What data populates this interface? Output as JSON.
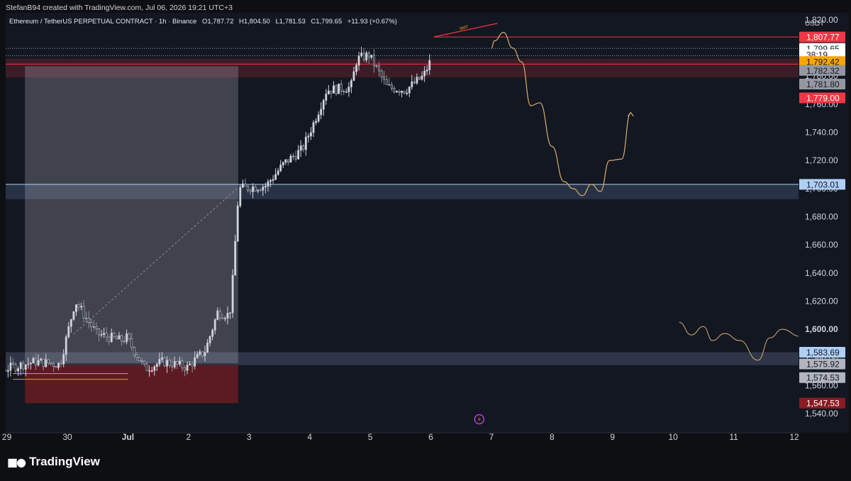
{
  "header": {
    "created_by": "StefanB94 created with TradingView.com, Jul 06, 2026 19:21 UTC+3"
  },
  "legend": {
    "symbol": "Ethereum / TetherUS PERPETUAL CONTRACT · 1h · Binance",
    "open": "O1,787.72",
    "high": "H1,804.50",
    "low": "L1,781.53",
    "close": "C1,799.65",
    "change": "+11.93 (+0.67%)"
  },
  "currency": "USDT",
  "footer": {
    "brand": "TradingView",
    "logo_icon": "tradingview-logo-icon"
  },
  "colors": {
    "background": "#131722",
    "candle_body": "#d1d4dc",
    "red_line": "#f23645",
    "blue_line": "#b0cff5",
    "projection": "#d9ad6a",
    "demand_zone": "#5c1b22"
  },
  "chart_data": {
    "type": "candlestick",
    "interval": "1h",
    "yaxis": {
      "ylim": [
        1530,
        1825
      ],
      "ticks": [
        "1,820.00",
        "1,800.00",
        "1,780.00",
        "1,760.00",
        "1,740.00",
        "1,720.00",
        "1,700.00",
        "1,680.00",
        "1,660.00",
        "1,640.00",
        "1,620.00",
        "1,600.00",
        "1,580.00",
        "1,560.00",
        "1,540.00"
      ],
      "tick_values": [
        1820,
        1800,
        1780,
        1760,
        1740,
        1720,
        1700,
        1680,
        1660,
        1640,
        1620,
        1600,
        1580,
        1560,
        1540
      ]
    },
    "xaxis": {
      "labels": [
        "29",
        "30",
        "Jul",
        "2",
        "3",
        "4",
        "5",
        "6",
        "7",
        "8",
        "9",
        "10",
        "11",
        "12"
      ],
      "day_values": [
        29,
        30,
        31,
        32,
        33,
        34,
        35,
        36,
        37,
        38,
        39,
        40,
        41,
        42
      ]
    },
    "price_badges": [
      {
        "label": "1,807.77",
        "value": 1807.77,
        "bg": "#f23645",
        "fg": "#ffffff"
      },
      {
        "label": "1,799.65",
        "value": 1799.65,
        "bg": "#ffffff",
        "fg": "#131722"
      },
      {
        "label": "38:19",
        "value": 1795.2,
        "bg": "#ffffff",
        "fg": "#131722"
      },
      {
        "label": "1,792.42",
        "value": 1790.3,
        "bg": "#f7a600",
        "fg": "#131722"
      },
      {
        "label": "1,782.32",
        "value": 1784.0,
        "bg": "#9598a1",
        "fg": "#131722"
      },
      {
        "label": "1,781.80",
        "value": 1774.3,
        "bg": "#9598a1",
        "fg": "#131722"
      },
      {
        "label": "1,779.00",
        "value": 1764.5,
        "bg": "#f23645",
        "fg": "#ffffff"
      },
      {
        "label": "1,703.01",
        "value": 1703.01,
        "bg": "#b0cff5",
        "fg": "#131722"
      },
      {
        "label": "1,583.69",
        "value": 1583.69,
        "bg": "#b0cff5",
        "fg": "#131722"
      },
      {
        "label": "1,575.92",
        "value": 1575.4,
        "bg": "#b2b5be",
        "fg": "#131722"
      },
      {
        "label": "1,574.53",
        "value": 1565.7,
        "bg": "#b2b5be",
        "fg": "#131722"
      },
      {
        "label": "1,547.53",
        "value": 1547.53,
        "bg": "#8b1a22",
        "fg": "#ffffff"
      }
    ],
    "annotations": {
      "smt_label": "SMT",
      "smt_line": {
        "x1": 36.05,
        "y1": 1807.8,
        "x2": 37.1,
        "y2": 1817.5
      },
      "horizontal_lines": [
        {
          "value": 1807.77,
          "x_from": 36.05,
          "color": "#f23645"
        },
        {
          "value": 1799.65,
          "x_from": 28,
          "color": "#9598a1",
          "style": "dotted"
        },
        {
          "value": 1794.5,
          "x_from": 28,
          "color": "#9598a1",
          "style": "dotted"
        },
        {
          "value": 1788.5,
          "x_from": 28,
          "color": "#f23645"
        },
        {
          "value": 1703.01,
          "x_from": 28,
          "color": "#b0cff5"
        }
      ],
      "zones": [
        {
          "name": "supply-zone",
          "x_from": 28,
          "x_to": 42.1,
          "y_lo": 1779.0,
          "y_hi": 1792.4,
          "color": "rgba(242,54,69,0.18)"
        },
        {
          "name": "equal-highs-zone",
          "x_from": 28,
          "x_to": 42.1,
          "y_lo": 1692.5,
          "y_hi": 1703.0,
          "color": "rgba(120,150,200,0.22)"
        },
        {
          "name": "discount-zone",
          "x_from": 28,
          "x_to": 42.1,
          "y_lo": 1574.5,
          "y_hi": 1583.7,
          "color": "rgba(150,170,210,0.22)"
        },
        {
          "name": "range-box",
          "x_from": 29.3,
          "x_to": 32.82,
          "y_lo": 1575.9,
          "y_hi": 1787.0,
          "color": "rgba(200,200,210,0.25)"
        },
        {
          "name": "demand-zone",
          "x_from": 29.3,
          "x_to": 32.82,
          "y_lo": 1547.5,
          "y_hi": 1574.5,
          "color": "#5c1b22"
        }
      ],
      "dashed_trend": {
        "x1": 30.1,
        "y1": 1596.5,
        "x2": 32.8,
        "y2": 1700.0
      },
      "projection_path_1": [
        [
          37.0,
          1800
        ],
        [
          37.05,
          1805
        ],
        [
          37.2,
          1811
        ],
        [
          37.35,
          1800
        ],
        [
          37.5,
          1790
        ],
        [
          37.65,
          1759
        ],
        [
          37.8,
          1761
        ],
        [
          38.0,
          1730
        ],
        [
          38.2,
          1705
        ],
        [
          38.35,
          1700
        ],
        [
          38.5,
          1695
        ],
        [
          38.65,
          1703
        ],
        [
          38.8,
          1698
        ],
        [
          38.95,
          1720
        ],
        [
          39.15,
          1721
        ],
        [
          39.3,
          1754
        ]
      ],
      "projection_path_2": [
        [
          40.1,
          1605
        ],
        [
          40.3,
          1596
        ],
        [
          40.5,
          1602
        ],
        [
          40.65,
          1592
        ],
        [
          40.85,
          1597
        ],
        [
          41.1,
          1592
        ],
        [
          41.4,
          1578
        ],
        [
          41.6,
          1594
        ],
        [
          41.8,
          1600
        ],
        [
          42.1,
          1595
        ]
      ],
      "orange_lines": [
        1568.5,
        1564.5
      ]
    },
    "candles": {
      "count": 192,
      "start_day": 28.0,
      "step_hours": 1,
      "anchors": [
        [
          28.0,
          1566
        ],
        [
          28.8,
          1570
        ],
        [
          29.5,
          1577
        ],
        [
          29.9,
          1575
        ],
        [
          30.05,
          1602
        ],
        [
          30.15,
          1620
        ],
        [
          30.5,
          1597
        ],
        [
          30.9,
          1592
        ],
        [
          31.0,
          1594
        ],
        [
          31.3,
          1572
        ],
        [
          31.6,
          1577
        ],
        [
          32.0,
          1573
        ],
        [
          32.3,
          1585
        ],
        [
          32.5,
          1612
        ],
        [
          32.7,
          1610
        ],
        [
          32.75,
          1635
        ],
        [
          32.85,
          1700
        ],
        [
          33.3,
          1702
        ],
        [
          33.6,
          1718
        ],
        [
          33.9,
          1728
        ],
        [
          34.1,
          1748
        ],
        [
          34.3,
          1770
        ],
        [
          34.7,
          1772
        ],
        [
          34.8,
          1792
        ],
        [
          35.0,
          1795
        ],
        [
          35.3,
          1772
        ],
        [
          35.6,
          1770
        ],
        [
          35.9,
          1780
        ],
        [
          36.05,
          1794
        ],
        [
          36.2,
          1785
        ],
        [
          36.6,
          1768
        ],
        [
          36.75,
          1745
        ],
        [
          36.82,
          1800
        ]
      ]
    }
  }
}
